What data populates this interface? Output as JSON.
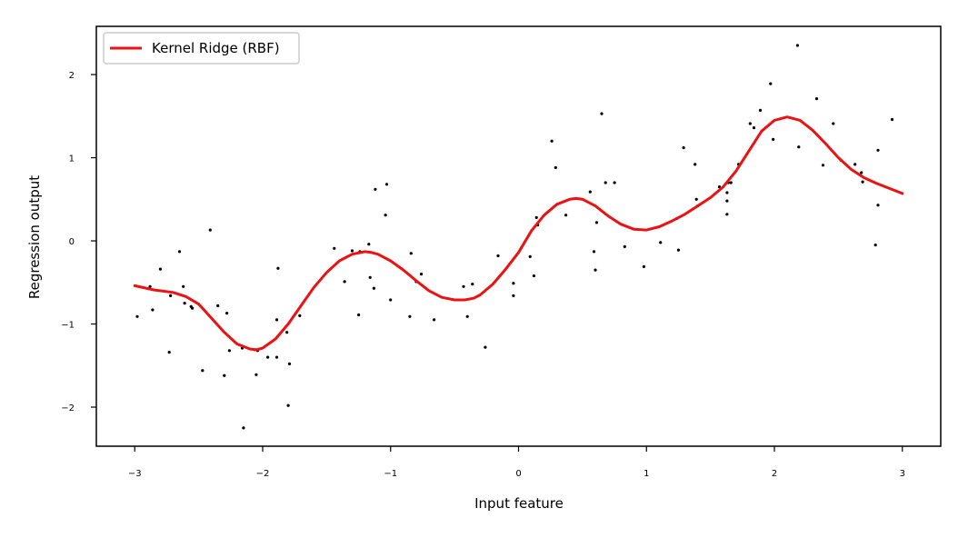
{
  "chart_data": {
    "type": "scatter",
    "xlabel": "Input feature",
    "ylabel": "Regression output",
    "xlim": [
      -3.3,
      3.3
    ],
    "ylim": [
      -2.47,
      2.58
    ],
    "xticks": [
      -3,
      -2,
      -1,
      0,
      1,
      2,
      3
    ],
    "yticks": [
      -2,
      -1,
      0,
      1,
      2
    ],
    "grid": false,
    "legend_position": "upper-left",
    "series": [
      {
        "name": "Kernel Ridge (RBF)",
        "kind": "line",
        "color": "#ee1111",
        "x": [
          -3.0,
          -2.85,
          -2.7,
          -2.6,
          -2.5,
          -2.4,
          -2.3,
          -2.2,
          -2.1,
          -2.05,
          -2.0,
          -1.9,
          -1.8,
          -1.7,
          -1.6,
          -1.5,
          -1.4,
          -1.3,
          -1.2,
          -1.15,
          -1.1,
          -1.0,
          -0.9,
          -0.8,
          -0.7,
          -0.6,
          -0.5,
          -0.42,
          -0.35,
          -0.3,
          -0.2,
          -0.1,
          0.0,
          0.1,
          0.2,
          0.3,
          0.4,
          0.45,
          0.5,
          0.6,
          0.7,
          0.8,
          0.9,
          1.0,
          1.1,
          1.2,
          1.3,
          1.4,
          1.5,
          1.6,
          1.7,
          1.8,
          1.9,
          2.0,
          2.1,
          2.2,
          2.3,
          2.4,
          2.5,
          2.6,
          2.7,
          2.8,
          2.9,
          3.0
        ],
        "y": [
          -0.54,
          -0.59,
          -0.62,
          -0.67,
          -0.76,
          -0.93,
          -1.1,
          -1.24,
          -1.3,
          -1.31,
          -1.29,
          -1.18,
          -1.0,
          -0.78,
          -0.56,
          -0.38,
          -0.24,
          -0.16,
          -0.13,
          -0.14,
          -0.16,
          -0.24,
          -0.35,
          -0.48,
          -0.6,
          -0.68,
          -0.71,
          -0.71,
          -0.69,
          -0.65,
          -0.52,
          -0.34,
          -0.14,
          0.12,
          0.31,
          0.44,
          0.5,
          0.51,
          0.5,
          0.42,
          0.3,
          0.2,
          0.14,
          0.13,
          0.17,
          0.24,
          0.32,
          0.42,
          0.52,
          0.65,
          0.84,
          1.08,
          1.32,
          1.45,
          1.49,
          1.45,
          1.33,
          1.17,
          1.0,
          0.86,
          0.76,
          0.69,
          0.63,
          0.57
        ]
      },
      {
        "name": "",
        "kind": "scatter",
        "color": "#000000",
        "x": [
          -2.98,
          -2.88,
          -2.86,
          -2.8,
          -2.73,
          -2.72,
          -2.65,
          -2.62,
          -2.61,
          -2.56,
          -2.55,
          -2.47,
          -2.41,
          -2.35,
          -2.3,
          -2.28,
          -2.26,
          -2.16,
          -2.15,
          -2.06,
          -2.05,
          -2.04,
          -1.96,
          -1.89,
          -1.89,
          -1.88,
          -1.81,
          -1.8,
          -1.79,
          -1.71,
          -1.44,
          -1.36,
          -1.3,
          -1.25,
          -1.24,
          -1.17,
          -1.16,
          -1.13,
          -1.12,
          -1.04,
          -1.03,
          -1.0,
          -0.85,
          -0.84,
          -0.8,
          -0.76,
          -0.66,
          -0.43,
          -0.4,
          -0.36,
          -0.26,
          -0.16,
          -0.04,
          -0.04,
          0.09,
          0.12,
          0.14,
          0.15,
          0.26,
          0.29,
          0.37,
          0.56,
          0.59,
          0.6,
          0.61,
          0.65,
          0.68,
          0.75,
          0.83,
          0.98,
          1.11,
          1.24,
          1.25,
          1.29,
          1.38,
          1.39,
          1.4,
          1.57,
          1.63,
          1.63,
          1.63,
          1.64,
          1.66,
          1.72,
          1.81,
          1.84,
          1.89,
          1.97,
          1.99,
          2.18,
          2.19,
          2.33,
          2.38,
          2.46,
          2.52,
          2.63,
          2.68,
          2.69,
          2.79,
          2.81,
          2.81,
          2.92
        ],
        "y": [
          -0.91,
          -0.55,
          -0.83,
          -0.34,
          -1.34,
          -0.66,
          -0.13,
          -0.55,
          -0.75,
          -0.79,
          -0.81,
          -1.56,
          0.13,
          -0.78,
          -1.62,
          -0.87,
          -1.32,
          -1.29,
          -2.25,
          -1.31,
          -1.61,
          -1.32,
          -1.4,
          -1.4,
          -0.95,
          -0.33,
          -1.1,
          -1.98,
          -1.48,
          -0.9,
          -0.09,
          -0.49,
          -0.12,
          -0.89,
          -0.13,
          -0.04,
          -0.44,
          -0.57,
          0.62,
          0.31,
          0.68,
          -0.71,
          -0.91,
          -0.15,
          -0.49,
          -0.4,
          -0.95,
          -0.55,
          -0.91,
          -0.52,
          -1.28,
          -0.18,
          -0.51,
          -0.66,
          -0.19,
          -0.42,
          0.28,
          0.19,
          1.2,
          0.88,
          0.31,
          0.59,
          -0.13,
          -0.35,
          0.22,
          1.53,
          0.7,
          0.7,
          -0.07,
          -0.31,
          -0.02,
          0.27,
          -0.11,
          1.12,
          0.92,
          0.5,
          0.42,
          0.65,
          0.58,
          0.48,
          0.32,
          0.7,
          0.7,
          0.92,
          1.41,
          1.36,
          1.57,
          1.89,
          1.22,
          2.35,
          1.13,
          1.71,
          0.91,
          1.41,
          0.97,
          0.92,
          0.82,
          0.71,
          -0.05,
          1.09,
          0.43,
          1.46
        ]
      }
    ]
  }
}
